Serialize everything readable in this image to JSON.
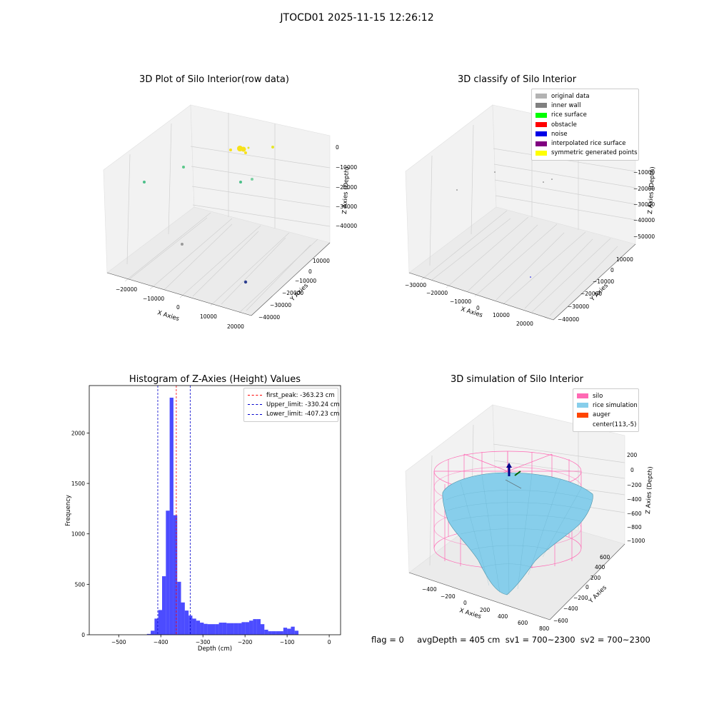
{
  "figure": {
    "suptitle": "JTOCD01 2025-11-15 12:26:12",
    "footer": "flag = 0     avgDepth = 405 cm  sv1 = 700~2300  sv2 = 700~2300"
  },
  "panels": {
    "raw": {
      "title": "3D Plot of Silo Interior(row data)",
      "xlabel": "X Axies",
      "ylabel": "Y Axies",
      "zlabel": "Z Axies (Depth)",
      "xticks": [
        "−20000",
        "−10000",
        "0",
        "10000",
        "20000"
      ],
      "yticks": [
        "−40000",
        "−30000",
        "−20000",
        "−10000",
        "0",
        "10000"
      ],
      "zticks": [
        "0",
        "−10000",
        "−20000",
        "−30000",
        "−40000"
      ]
    },
    "classify": {
      "title": "3D classify of Silo Interior",
      "xlabel": "X Axies",
      "ylabel": "Y Axies",
      "zlabel": "Z Axies (Depth)",
      "xticks": [
        "−30000",
        "−20000",
        "−10000",
        "0",
        "10000",
        "20000"
      ],
      "yticks": [
        "−40000",
        "−30000",
        "−20000",
        "−10000",
        "0",
        "10000"
      ],
      "zticks": [
        "−10000",
        "−20000",
        "−30000",
        "−40000",
        "−50000"
      ],
      "legend": [
        {
          "label": "original data",
          "color": "#b3b3b3"
        },
        {
          "label": "inner wall",
          "color": "#808080"
        },
        {
          "label": "rice surface",
          "color": "#00ff00"
        },
        {
          "label": "obstacle",
          "color": "#ff0000"
        },
        {
          "label": "noise",
          "color": "#0000e6"
        },
        {
          "label": "interpolated rice surface",
          "color": "#800080"
        },
        {
          "label": "symmetric generated points",
          "color": "#ffff00"
        }
      ]
    },
    "simulation": {
      "title": "3D simulation of Silo Interior",
      "xlabel": "X Axies",
      "ylabel": "Y Axies",
      "zlabel": "Z Axies (Depth)",
      "xticks": [
        "−400",
        "−200",
        "0",
        "200",
        "400",
        "600",
        "800"
      ],
      "yticks": [
        "−600",
        "−400",
        "−200",
        "0",
        "200",
        "400",
        "600"
      ],
      "zticks": [
        "200",
        "0",
        "−200",
        "−400",
        "−600",
        "−800",
        "−1000"
      ],
      "legend": [
        {
          "label": "silo",
          "color": "#ff69b4"
        },
        {
          "label": "rice simulation",
          "color": "#87ceeb"
        },
        {
          "label": "auger",
          "color": "#ff4500"
        },
        {
          "label": "center(113,-5)",
          "color": ""
        }
      ]
    }
  },
  "chart_data": [
    {
      "type": "bar",
      "title": "Histogram of Z-Axies (Height) Values",
      "xlabel": "Depth (cm)",
      "ylabel": "Frequency",
      "xlim": [
        -570,
        27
      ],
      "ylim": [
        0,
        2470
      ],
      "xticks": [
        -500,
        -400,
        -300,
        -200,
        -100,
        0
      ],
      "yticks": [
        0,
        500,
        1000,
        1500,
        2000
      ],
      "bar_color": "#0000ff",
      "bin_width": 9,
      "bin_starts": [
        -433,
        -424,
        -415,
        -406,
        -397,
        -388,
        -379,
        -370,
        -361,
        -352,
        -343,
        -334,
        -325,
        -316,
        -307,
        -298,
        -289,
        -280,
        -271,
        -262,
        -253,
        -244,
        -235,
        -226,
        -217,
        -208,
        -199,
        -190,
        -181,
        -172,
        -163,
        -154,
        -145,
        -136,
        -127,
        -118,
        -109,
        -100,
        -91,
        -82,
        -73,
        -64,
        -55,
        -46,
        -37,
        -28,
        -19
      ],
      "values": [
        8,
        40,
        160,
        245,
        580,
        1230,
        2350,
        1185,
        525,
        320,
        240,
        190,
        160,
        140,
        120,
        108,
        105,
        105,
        105,
        120,
        120,
        115,
        115,
        115,
        115,
        125,
        125,
        140,
        155,
        155,
        105,
        50,
        35,
        35,
        35,
        35,
        70,
        60,
        80,
        40,
        0,
        0,
        0,
        0,
        0,
        0,
        0
      ],
      "reference_lines": [
        {
          "name": "first_peak: -363.23 cm",
          "x": -363.23,
          "color": "#ff0000"
        },
        {
          "name": "Upper_limit: -330.24 cm",
          "x": -330.24,
          "color": "#0000cc"
        },
        {
          "name": "Lower_limit: -407.23 cm",
          "x": -407.23,
          "color": "#0000cc"
        }
      ]
    }
  ]
}
